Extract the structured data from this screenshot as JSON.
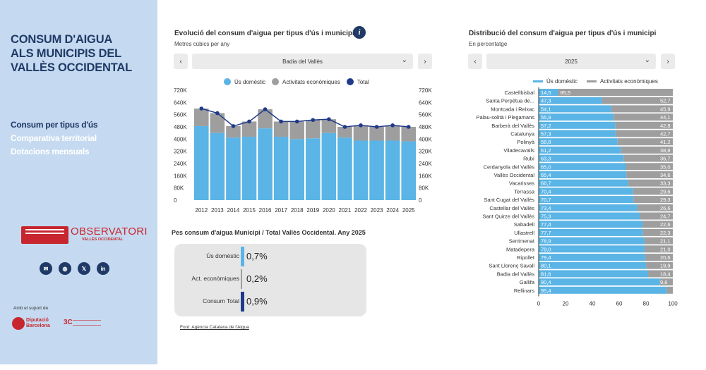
{
  "sidebar": {
    "title_lines": [
      "CONSUM D'AIGUA",
      "ALS MUNICIPIS DEL",
      "VALLÈS OCCIDENTAL"
    ],
    "nav": [
      {
        "label": "Consum per tipus d'ús",
        "active": true
      },
      {
        "label": "Comparativa territorial",
        "active": false
      },
      {
        "label": "Dotacions mensuals",
        "active": false
      }
    ],
    "logo_consell": "CONSELL COMARCAL DEL VALLÈS OCCIDENTAL",
    "logo_observatori": "OBSERVATORI",
    "logo_observatori_sub": "VALLÈS OCCIDENTAL",
    "social_icons": [
      "email-icon",
      "web-icon",
      "x-icon",
      "linkedin-icon"
    ],
    "support_label": "Amb el suport de",
    "diputacio_line1": "Diputació",
    "diputacio_line2": "Barcelona",
    "x3_label": "3C"
  },
  "left_panel": {
    "title": "Evolució del consum d'aigua per tipus d'ús i municipi",
    "subtitle": "Metres cúbics per any",
    "selector_value": "Badia del Vallès",
    "prev_label": "‹",
    "next_label": "›",
    "legend": [
      {
        "label": "Ús domèstic",
        "color": "#5ab4e5"
      },
      {
        "label": "Activitats econòmiques",
        "color": "#9e9e9e"
      },
      {
        "label": "Total",
        "color": "#1f3a8a"
      }
    ]
  },
  "right_panel": {
    "title": "Distribució del consum d'aigua per tipus d'ús i municipi",
    "subtitle": "En percentatge",
    "selector_value": "2025",
    "prev_label": "‹",
    "next_label": "›",
    "legend": [
      {
        "label": "Ús domèstic",
        "color": "#5ab4e5"
      },
      {
        "label": "Activitats econòmiques",
        "color": "#9e9e9e"
      }
    ]
  },
  "kpi": {
    "title": "Pes consum d'aigua Municipi / Total Vallès Occidental. Any 2025",
    "rows": [
      {
        "label": "Ús domèstic",
        "value": "0,7%",
        "color": "#5ab4e5"
      },
      {
        "label": "Act. econòmiques",
        "value": "0,2%",
        "color": "#9e9e9e"
      },
      {
        "label": "Consum Total",
        "value": "0,9%",
        "color": "#1f3a8a"
      }
    ]
  },
  "source": "Font: Agència Catalana de l'Aigua",
  "chart_data": [
    {
      "type": "bar",
      "stacked": true,
      "categories": [
        "2012",
        "2013",
        "2014",
        "2015",
        "2016",
        "2017",
        "2018",
        "2019",
        "2020",
        "2021",
        "2022",
        "2023",
        "2024",
        "2025"
      ],
      "series": [
        {
          "name": "Ús domèstic",
          "values": [
            485000,
            440000,
            410000,
            415000,
            470000,
            415000,
            400000,
            405000,
            440000,
            410000,
            390000,
            390000,
            390000,
            385000
          ],
          "color": "#5ab4e5"
        },
        {
          "name": "Activitats econòmiques",
          "values": [
            115000,
            130000,
            75000,
            100000,
            125000,
            100000,
            115000,
            120000,
            90000,
            70000,
            100000,
            90000,
            100000,
            95000
          ],
          "color": "#9e9e9e"
        },
        {
          "name": "Total",
          "type": "line",
          "values": [
            600000,
            570000,
            485000,
            515000,
            595000,
            515000,
            515000,
            525000,
            530000,
            480000,
            490000,
            480000,
            490000,
            480000
          ],
          "color": "#1f3a8a"
        }
      ],
      "y_ticks": [
        "0",
        "80K",
        "160K",
        "240K",
        "320K",
        "400K",
        "480K",
        "560K",
        "640K",
        "720K"
      ],
      "ylim": [
        0,
        720000
      ],
      "legend_position": "top"
    },
    {
      "type": "bar",
      "orientation": "horizontal",
      "stacked": true,
      "categories": [
        "Castellbisbal",
        "Santa Perpètua de...",
        "Montcada i Reixac",
        "Palau-solità i Plegamans",
        "Barberà del Vallès",
        "Catalunya",
        "Polinyà",
        "Viladecavalls",
        "Rubí",
        "Cerdanyola del Vallès",
        "Vallès Occidental",
        "Vacarisses",
        "Terrassa",
        "Sant Cugat del Vallès",
        "Castellar del Vallès",
        "Sant Quirze del Vallès",
        "Sabadell",
        "Ullastrell",
        "Sentmenat",
        "Matadepera",
        "Ripollet",
        "Sant Llorenç Savall",
        "Badia del Vallès",
        "Gallifa",
        "Rellinars"
      ],
      "series": [
        {
          "name": "Ús domèstic",
          "values": [
            14.5,
            47.3,
            54.1,
            55.9,
            57.2,
            57.3,
            58.8,
            61.2,
            63.3,
            65.0,
            65.4,
            66.7,
            70.4,
            70.7,
            73.4,
            75.3,
            77.4,
            77.7,
            78.9,
            79.0,
            79.4,
            80.1,
            81.6,
            90.4,
            95.4
          ],
          "labels": [
            "14,5",
            "47,3",
            "54,1",
            "55,9",
            "57,2",
            "57,3",
            "58,8",
            "61,2",
            "63,3",
            "65,0",
            "65,4",
            "66,7",
            "70,4",
            "70,7",
            "73,4",
            "75,3",
            "77,4",
            "77,7",
            "78,9",
            "79,0",
            "79,4",
            "80,1",
            "81,6",
            "90,4",
            "95,4"
          ],
          "color": "#5ab4e5"
        },
        {
          "name": "Activitats econòmiques",
          "values": [
            85.5,
            52.7,
            45.9,
            44.1,
            42.8,
            42.7,
            41.2,
            38.8,
            36.7,
            35.0,
            34.6,
            33.3,
            29.6,
            29.3,
            26.6,
            24.7,
            22.6,
            22.3,
            21.1,
            21.0,
            20.6,
            19.9,
            18.4,
            9.6,
            4.6
          ],
          "labels": [
            "85,5",
            "52,7",
            "45,9",
            "44,1",
            "42,8",
            "42,7",
            "41,2",
            "38,8",
            "36,7",
            "35,0",
            "34,6",
            "33,3",
            "29,6",
            "29,3",
            "26,6",
            "24,7",
            "22,6",
            "22,3",
            "21,1",
            "21,0",
            "20,6",
            "19,9",
            "18,4",
            "9,6",
            ""
          ],
          "color": "#9e9e9e"
        }
      ],
      "x_ticks": [
        "0",
        "20",
        "40",
        "60",
        "80",
        "100"
      ],
      "xlim": [
        0,
        100
      ],
      "legend_position": "top"
    }
  ]
}
